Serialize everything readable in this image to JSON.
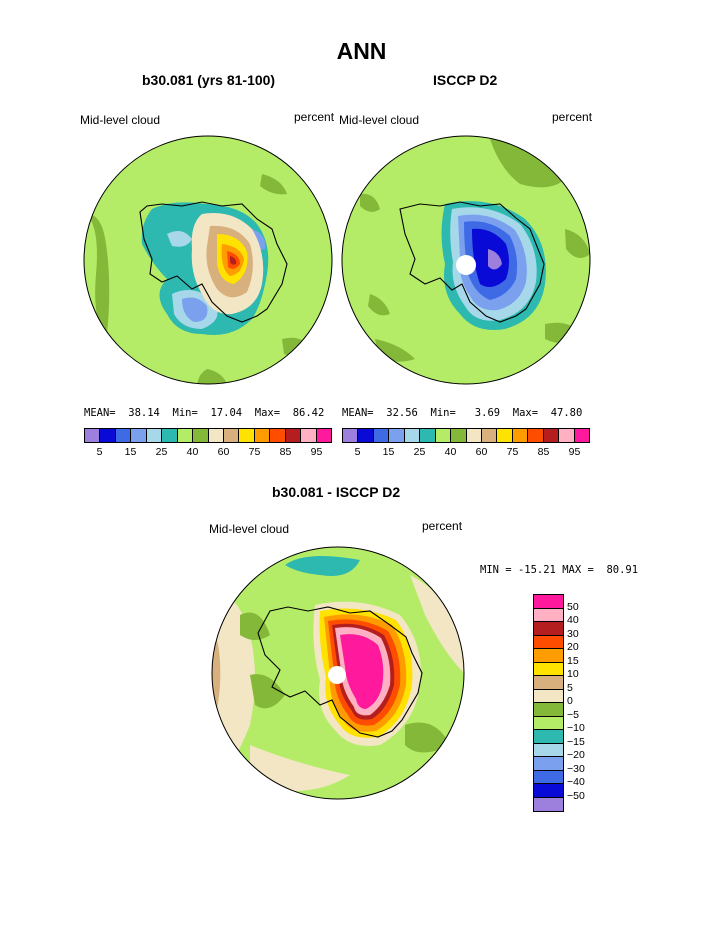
{
  "title": "ANN",
  "panels": [
    {
      "title": "b30.081 (yrs 81-100)",
      "left_label": "Mid-level cloud",
      "right_label": "percent",
      "stats": {
        "mean_label": "MEAN=",
        "mean": "38.14",
        "min_label": "Min=",
        "min": "17.04",
        "max_label": "Max=",
        "max": "86.42"
      }
    },
    {
      "title": "ISCCP D2",
      "left_label": "Mid-level cloud",
      "right_label": "percent",
      "stats": {
        "mean_label": "MEAN=",
        "mean": "32.56",
        "min_label": "Min=",
        "min": "3.69",
        "max_label": "Max=",
        "max": "47.80"
      }
    },
    {
      "title": "b30.081 - ISCCP D2",
      "left_label": "Mid-level cloud",
      "right_label": "percent",
      "stats": {
        "min_label": "MIN =",
        "min": "-15.21",
        "max_label": "MAX =",
        "max": "80.91"
      }
    }
  ],
  "colorbar_top": {
    "colors": [
      "#9d7fde",
      "#0a0ad6",
      "#3f6ae6",
      "#7aa0ee",
      "#a6d8ea",
      "#2db8b0",
      "#b4ec68",
      "#84b838",
      "#f2e6c4",
      "#d7b07e",
      "#ffe200",
      "#ff9d00",
      "#ff4d00",
      "#b51e1e",
      "#ffb0c2",
      "#ff1a9d"
    ],
    "tick_labels": [
      "5",
      "15",
      "25",
      "40",
      "60",
      "75",
      "85",
      "95"
    ]
  },
  "colorbar_diff": {
    "colors": [
      "#ff1a9d",
      "#ffb0c2",
      "#b51e1e",
      "#ff4d00",
      "#ff9d00",
      "#ffe200",
      "#d7b07e",
      "#f2e6c4",
      "#84b838",
      "#b4ec68",
      "#2db8b0",
      "#a6d8ea",
      "#7aa0ee",
      "#3f6ae6",
      "#0a0ad6",
      "#9d7fde"
    ],
    "labels": [
      "50",
      "40",
      "30",
      "20",
      "15",
      "10",
      "5",
      "0",
      "−5",
      "−10",
      "−15",
      "−20",
      "−30",
      "−40",
      "−50"
    ]
  },
  "map_colors": {
    "base": "#b4ec68",
    "dark_green": "#84b838",
    "teal": "#2db8b0",
    "light_blue": "#a6d8ea",
    "mid_blue": "#7aa0ee",
    "blue": "#3f6ae6",
    "deep_blue": "#0a0ad6",
    "purple": "#9d7fde",
    "tan": "#d7b07e",
    "cream": "#f2e6c4",
    "yellow": "#ffe200",
    "orange": "#ff9d00",
    "red_orange": "#ff4d00",
    "dark_red": "#b51e1e",
    "pink": "#ffb0c2",
    "magenta": "#ff1a9d"
  }
}
